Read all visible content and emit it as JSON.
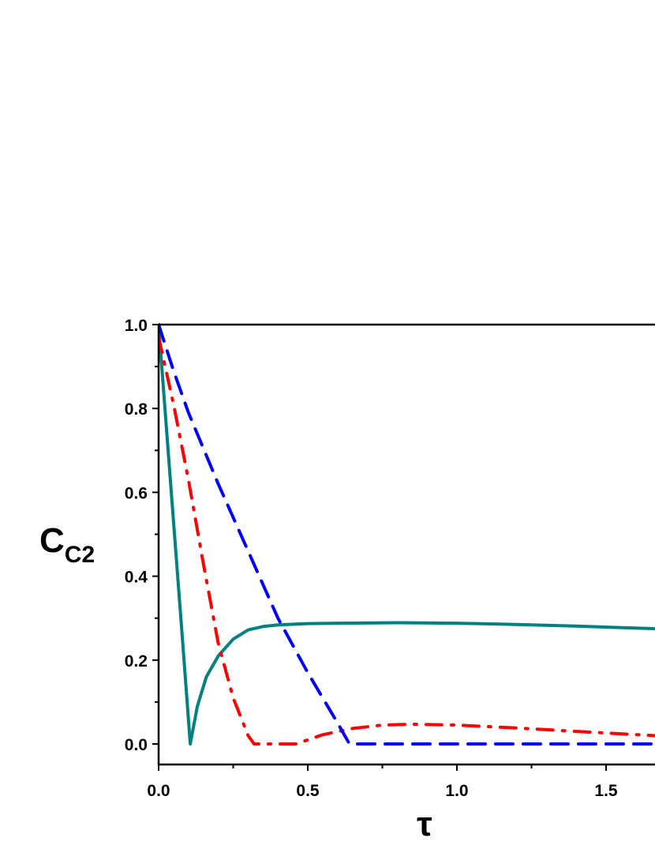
{
  "chart_data": {
    "type": "line",
    "title": "",
    "xlabel": "τ",
    "ylabel": "C",
    "ylabel_subscript": "C2",
    "xlim": [
      0.0,
      1.66
    ],
    "ylim": [
      -0.05,
      1.0
    ],
    "x_ticks": [
      "0.0",
      "0.5",
      "1.0",
      "1.5"
    ],
    "y_ticks": [
      "0.0",
      "0.2",
      "0.4",
      "0.6",
      "0.8",
      "1.0"
    ],
    "grid": false,
    "legend": null,
    "series": [
      {
        "name": "solid-teal",
        "color": "#008080",
        "style": "solid",
        "x": [
          0.0,
          0.02,
          0.05,
          0.08,
          0.106,
          0.13,
          0.16,
          0.2,
          0.25,
          0.3,
          0.35,
          0.4,
          0.5,
          0.6,
          0.8,
          1.0,
          1.2,
          1.4,
          1.66
        ],
        "y": [
          1.0,
          0.81,
          0.53,
          0.25,
          0.0,
          0.09,
          0.16,
          0.21,
          0.25,
          0.272,
          0.28,
          0.284,
          0.287,
          0.288,
          0.289,
          0.288,
          0.285,
          0.281,
          0.275
        ]
      },
      {
        "name": "dash-dot-red",
        "color": "#ff0000",
        "style": "dashdot",
        "x": [
          0.0,
          0.05,
          0.1,
          0.15,
          0.2,
          0.25,
          0.3,
          0.32,
          0.46,
          0.55,
          0.65,
          0.75,
          0.85,
          1.0,
          1.2,
          1.4,
          1.66
        ],
        "y": [
          0.97,
          0.81,
          0.63,
          0.43,
          0.24,
          0.11,
          0.02,
          0.0,
          0.0,
          0.022,
          0.037,
          0.045,
          0.047,
          0.045,
          0.038,
          0.03,
          0.02
        ]
      },
      {
        "name": "dashed-blue",
        "color": "#0000ff",
        "style": "dashed",
        "x": [
          0.0,
          0.05,
          0.1,
          0.2,
          0.3,
          0.4,
          0.5,
          0.6,
          0.64,
          0.7,
          1.0,
          1.5,
          1.66
        ],
        "y": [
          1.0,
          0.89,
          0.79,
          0.62,
          0.46,
          0.3,
          0.17,
          0.05,
          0.0,
          0.0,
          0.0,
          0.0,
          0.0
        ]
      }
    ]
  }
}
